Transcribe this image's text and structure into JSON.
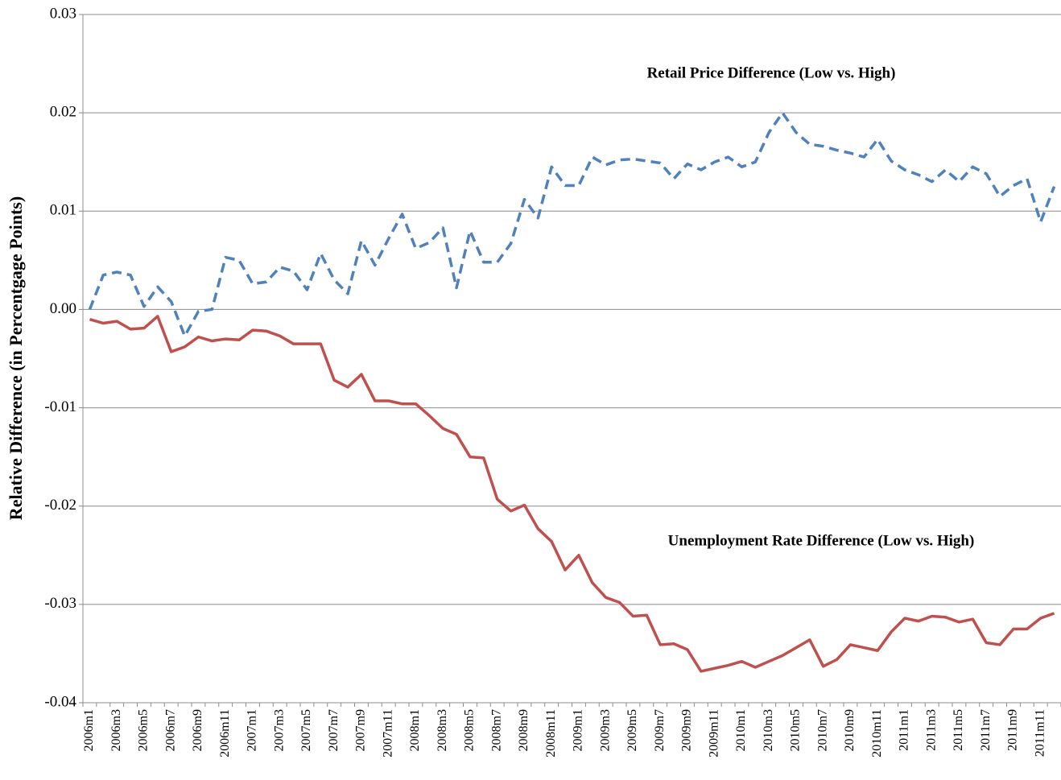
{
  "chart_data": {
    "type": "line",
    "y_label": "Relative Difference (in Percentgage Points)",
    "categories": [
      "2006m1",
      null,
      "2006m3",
      null,
      "2006m5",
      null,
      "2006m7",
      null,
      "2006m9",
      null,
      "2006m11",
      null,
      "2007m1",
      null,
      "2007m3",
      null,
      "2007m5",
      null,
      "2007m7",
      null,
      "2007m9",
      null,
      "2007m11",
      null,
      "2008m1",
      null,
      "2008m3",
      null,
      "2008m5",
      null,
      "2008m7",
      null,
      "2008m9",
      null,
      "2008m11",
      null,
      "2009m1",
      null,
      "2009m3",
      null,
      "2009m5",
      null,
      "2009m7",
      null,
      "2009m9",
      null,
      "2009m11",
      null,
      "2010m1",
      null,
      "2010m3",
      null,
      "2010m5",
      null,
      "2010m7",
      null,
      "2010m9",
      null,
      "2010m11",
      null,
      "2011m1",
      null,
      "2011m3",
      null,
      "2011m5",
      null,
      "2011m7",
      null,
      "2011m9",
      null,
      "2011m11",
      null
    ],
    "series": [
      {
        "name": "Retail Price Difference (Low vs. High)",
        "color": "#4f81bd",
        "dashed": true,
        "values": [
          0.0,
          0.0035,
          0.0038,
          0.0035,
          0.0003,
          0.0023,
          0.0008,
          -0.0027,
          -0.0002,
          0.0,
          0.0053,
          0.005,
          0.0026,
          0.0028,
          0.0043,
          0.0039,
          0.002,
          0.0057,
          0.003,
          0.0016,
          0.007,
          0.0045,
          0.0072,
          0.0097,
          0.0062,
          0.0068,
          0.0083,
          0.0022,
          0.008,
          0.0048,
          0.0048,
          0.0067,
          0.0112,
          0.0093,
          0.0145,
          0.0126,
          0.0126,
          0.0155,
          0.0147,
          0.0152,
          0.0153,
          0.0151,
          0.0149,
          0.0133,
          0.0148,
          0.0142,
          0.015,
          0.0155,
          0.0145,
          0.015,
          0.018,
          0.02,
          0.018,
          0.0168,
          0.0166,
          0.0162,
          0.0159,
          0.0155,
          0.0173,
          0.0151,
          0.0142,
          0.0137,
          0.013,
          0.0142,
          0.013,
          0.0145,
          0.0138,
          0.0115,
          0.0126,
          0.0133,
          0.0089,
          0.0125
        ]
      },
      {
        "name": "Unemployment Rate Difference (Low vs. High)",
        "color": "#c0504d",
        "dashed": false,
        "values": [
          -0.001,
          -0.0014,
          -0.0012,
          -0.002,
          -0.0019,
          -0.0007,
          -0.0043,
          -0.0038,
          -0.0028,
          -0.0032,
          -0.003,
          -0.0031,
          -0.0021,
          -0.0022,
          -0.0027,
          -0.0035,
          -0.0035,
          -0.0035,
          -0.0072,
          -0.0079,
          -0.0066,
          -0.0093,
          -0.0093,
          -0.0096,
          -0.0096,
          -0.0108,
          -0.0121,
          -0.0127,
          -0.015,
          -0.0151,
          -0.0193,
          -0.0205,
          -0.0199,
          -0.0223,
          -0.0236,
          -0.0265,
          -0.025,
          -0.0278,
          -0.0293,
          -0.0298,
          -0.0312,
          -0.0311,
          -0.0341,
          -0.034,
          -0.0346,
          -0.0368,
          -0.0365,
          -0.0362,
          -0.0358,
          -0.0364,
          -0.0358,
          -0.0352,
          -0.0344,
          -0.0336,
          -0.0363,
          -0.0356,
          -0.0341,
          -0.0344,
          -0.0347,
          -0.0328,
          -0.0314,
          -0.0317,
          -0.0312,
          -0.0313,
          -0.0318,
          -0.0315,
          -0.0339,
          -0.0341,
          -0.0325,
          -0.0325,
          -0.0314,
          -0.0309
        ]
      }
    ],
    "ylim": [
      -0.04,
      0.03
    ],
    "yticks": [
      {
        "value": -0.04,
        "label": "-0.04"
      },
      {
        "value": -0.03,
        "label": "-0.03"
      },
      {
        "value": -0.02,
        "label": "-0.02"
      },
      {
        "value": -0.01,
        "label": "-0.01"
      },
      {
        "value": 0,
        "label": "0.00"
      },
      {
        "value": 0.01,
        "label": "0.01"
      },
      {
        "value": 0.02,
        "label": "0.02"
      },
      {
        "value": 0.03,
        "label": "0.03"
      }
    ],
    "grid": true
  }
}
